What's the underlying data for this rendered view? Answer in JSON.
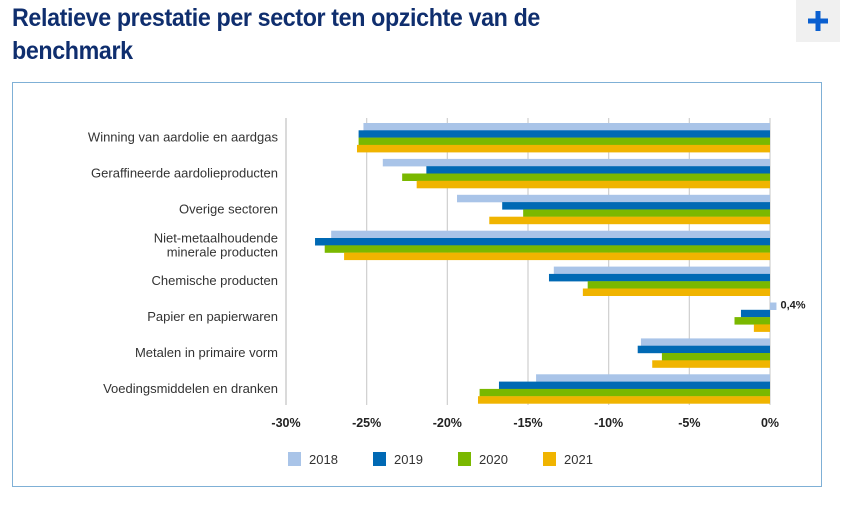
{
  "header": {
    "title": "Relatieve prestatie per sector ten opzichte van de benchmark",
    "expand_button_icon": "plus-icon"
  },
  "chart_data": {
    "type": "bar",
    "orientation": "horizontal",
    "title": "Relatieve prestatie per sector ten opzichte van de benchmark",
    "xlabel": "",
    "ylabel": "",
    "xlim": [
      -30,
      0
    ],
    "x_ticks": [
      "-30%",
      "-25%",
      "-20%",
      "-15%",
      "-10%",
      "-5%",
      "0%"
    ],
    "x_tick_values": [
      -30,
      -25,
      -20,
      -15,
      -10,
      -5,
      0
    ],
    "grid": true,
    "legend_position": "bottom-center",
    "categories": [
      [
        "Winning van aardolie en aardgas"
      ],
      [
        "Geraffineerde aardolieproducten"
      ],
      [
        "Overige sectoren"
      ],
      [
        "Niet-metaalhoudende",
        "minerale producten"
      ],
      [
        "Chemische producten"
      ],
      [
        "Papier en papierwaren"
      ],
      [
        "Metalen in primaire vorm"
      ],
      [
        "Voedingsmiddelen en dranken"
      ]
    ],
    "series": [
      {
        "name": "2018",
        "color": "#a9c4e8",
        "values": [
          -25.2,
          -24.0,
          -19.4,
          -27.2,
          -13.4,
          0.4,
          -8.0,
          -14.5
        ]
      },
      {
        "name": "2019",
        "color": "#0069b4",
        "values": [
          -25.5,
          -21.3,
          -16.6,
          -28.2,
          -13.7,
          -1.8,
          -8.2,
          -16.8
        ]
      },
      {
        "name": "2020",
        "color": "#7ab800",
        "values": [
          -25.5,
          -22.8,
          -15.3,
          -27.6,
          -11.3,
          -2.2,
          -6.7,
          -18.0
        ]
      },
      {
        "name": "2021",
        "color": "#f0b400",
        "values": [
          -25.6,
          -21.9,
          -17.4,
          -26.4,
          -11.6,
          -1.0,
          -7.3,
          -18.1
        ]
      }
    ],
    "annotations": [
      {
        "text": "0,4%",
        "category_index": 5,
        "series_index": 0
      }
    ]
  }
}
